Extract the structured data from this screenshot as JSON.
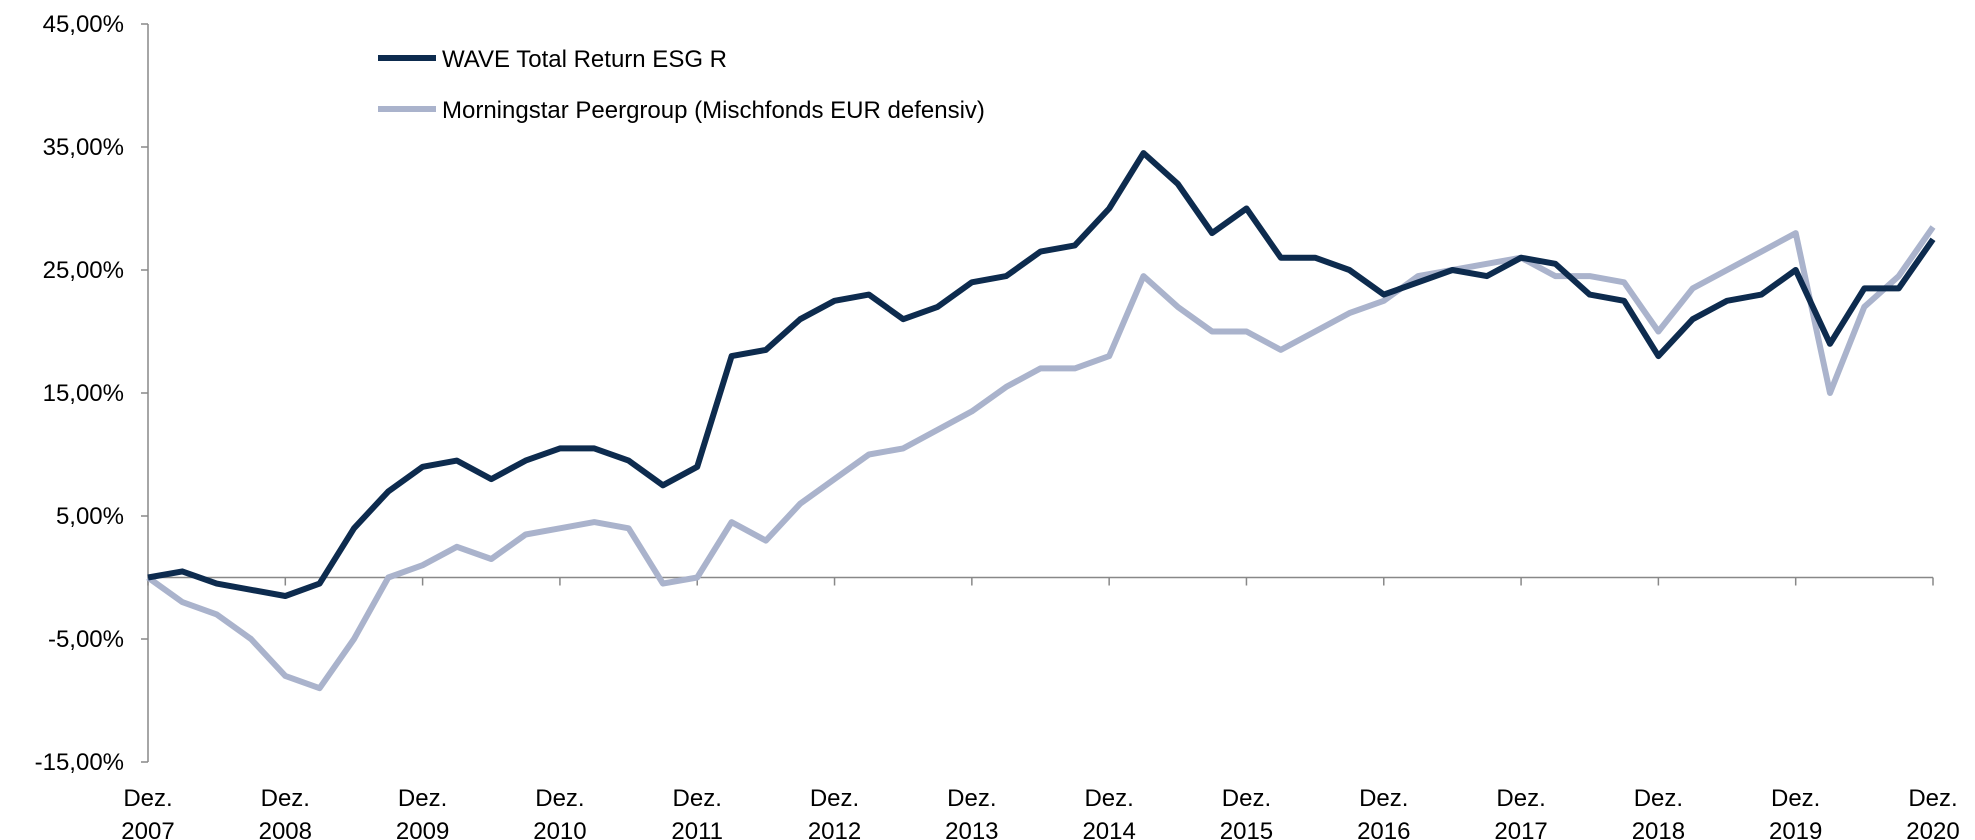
{
  "chart_data": {
    "type": "line",
    "categories": [
      "Dez. 2007",
      null,
      null,
      null,
      "Dez. 2008",
      null,
      null,
      null,
      "Dez. 2009",
      null,
      null,
      null,
      "Dez. 2010",
      null,
      null,
      null,
      "Dez. 2011",
      null,
      null,
      null,
      "Dez. 2012",
      null,
      null,
      null,
      "Dez. 2013",
      null,
      null,
      null,
      "Dez. 2014",
      null,
      null,
      null,
      "Dez. 2015",
      null,
      null,
      null,
      "Dez. 2016",
      null,
      null,
      null,
      "Dez. 2017",
      null,
      null,
      null,
      "Dez. 2018",
      null,
      null,
      null,
      "Dez. 2019",
      null,
      null,
      null,
      "Dez. 2020"
    ],
    "series": [
      {
        "name": "WAVE Total Return ESG R",
        "color": "#0d2b4e",
        "values": [
          0,
          0.5,
          -0.5,
          -1,
          -1.5,
          -0.5,
          4,
          7,
          9,
          9.5,
          8,
          9.5,
          10.5,
          10.5,
          9.5,
          7.5,
          9,
          18,
          18.5,
          21,
          22.5,
          23,
          21,
          22,
          24,
          24.5,
          26.5,
          27,
          30,
          34.5,
          32,
          28,
          30,
          26,
          26,
          25,
          23,
          24,
          25,
          24.5,
          26,
          25.5,
          23,
          22.5,
          18,
          21,
          22.5,
          23,
          25,
          19,
          23.5,
          23.5,
          27.5
        ]
      },
      {
        "name": "Morningstar Peergroup (Mischfonds EUR defensiv)",
        "color": "#aab3cc",
        "values": [
          0,
          -2,
          -3,
          -5,
          -8,
          -9,
          -5,
          0,
          1,
          2.5,
          1.5,
          3.5,
          4,
          4.5,
          4,
          -0.5,
          0,
          4.5,
          3,
          6,
          8,
          10,
          10.5,
          12,
          13.5,
          15.5,
          17,
          17,
          18,
          24.5,
          22,
          20,
          20,
          18.5,
          20,
          21.5,
          22.5,
          24.5,
          25,
          25.5,
          26,
          24.5,
          24.5,
          24,
          20,
          23.5,
          25,
          26.5,
          28,
          15,
          22,
          24.5,
          28.5
        ]
      }
    ],
    "ylim": [
      -15,
      45
    ],
    "yticks": [
      {
        "value": -15,
        "label": "-15,00%"
      },
      {
        "value": -5,
        "label": "-5,00%"
      },
      {
        "value": 5,
        "label": "5,00%"
      },
      {
        "value": 15,
        "label": "15,00%"
      },
      {
        "value": 25,
        "label": "25,00%"
      },
      {
        "value": 35,
        "label": "35,00%"
      },
      {
        "value": 45,
        "label": "45,00%"
      }
    ],
    "legend": "top-left"
  }
}
